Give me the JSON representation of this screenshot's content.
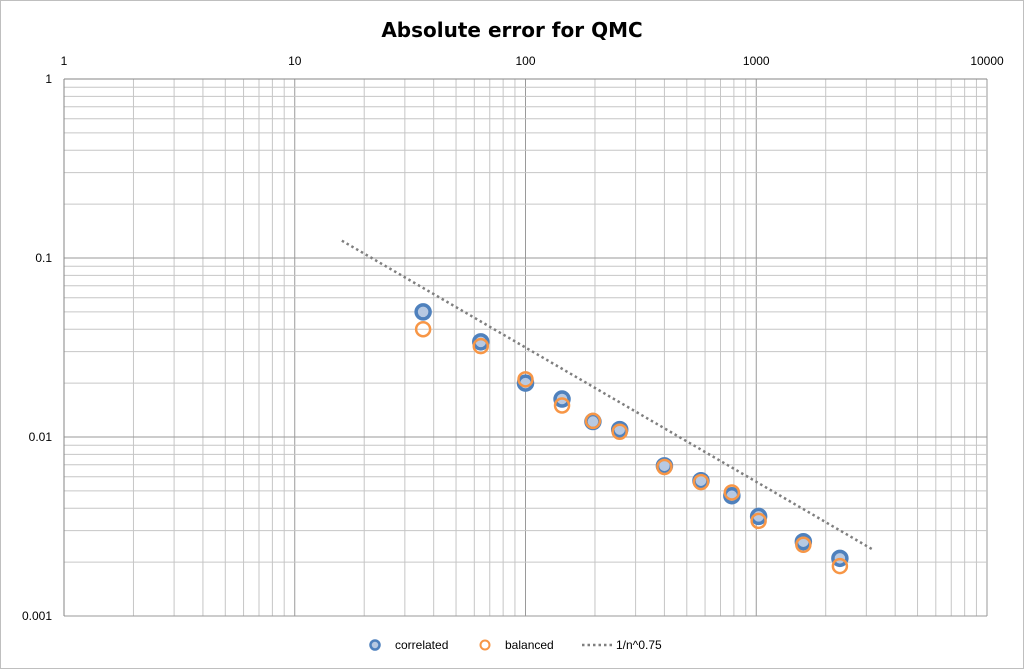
{
  "chart_data": {
    "type": "scatter",
    "title": "Absolute error for QMC",
    "xlabel": "",
    "ylabel": "",
    "x_scale": "log",
    "y_scale": "log",
    "xlim": [
      1,
      10000
    ],
    "ylim": [
      0.001,
      1
    ],
    "x_tick_labels": [
      "1",
      "10",
      "100",
      "1000",
      "10000"
    ],
    "y_tick_labels": [
      "1",
      "0.1",
      "0.01",
      "0.001"
    ],
    "grid": true,
    "legend_position": "bottom",
    "series": [
      {
        "name": "correlated",
        "kind": "scatter",
        "marker": "circle",
        "color": "#4F81BD",
        "points": [
          [
            36,
            0.05
          ],
          [
            64,
            0.034
          ],
          [
            100,
            0.02
          ],
          [
            144,
            0.0163
          ],
          [
            196,
            0.0122
          ],
          [
            256,
            0.011
          ],
          [
            400,
            0.0069
          ],
          [
            576,
            0.0057
          ],
          [
            784,
            0.0047
          ],
          [
            1024,
            0.0036
          ],
          [
            1600,
            0.0026
          ],
          [
            2304,
            0.0021
          ]
        ]
      },
      {
        "name": "balanced",
        "kind": "scatter",
        "marker": "circle-open",
        "color": "#F79646",
        "points": [
          [
            36,
            0.04
          ],
          [
            64,
            0.0322
          ],
          [
            100,
            0.021
          ],
          [
            144,
            0.015
          ],
          [
            196,
            0.0123
          ],
          [
            256,
            0.0107
          ],
          [
            400,
            0.0068
          ],
          [
            576,
            0.0056
          ],
          [
            784,
            0.0049
          ],
          [
            1024,
            0.0034
          ],
          [
            1600,
            0.0025
          ],
          [
            2304,
            0.0019
          ]
        ]
      },
      {
        "name": "1/n^0.75",
        "kind": "line",
        "style": "dotted",
        "color": "#7F7F7F",
        "x": [
          16,
          3200
        ],
        "exponent": -0.75
      }
    ]
  }
}
